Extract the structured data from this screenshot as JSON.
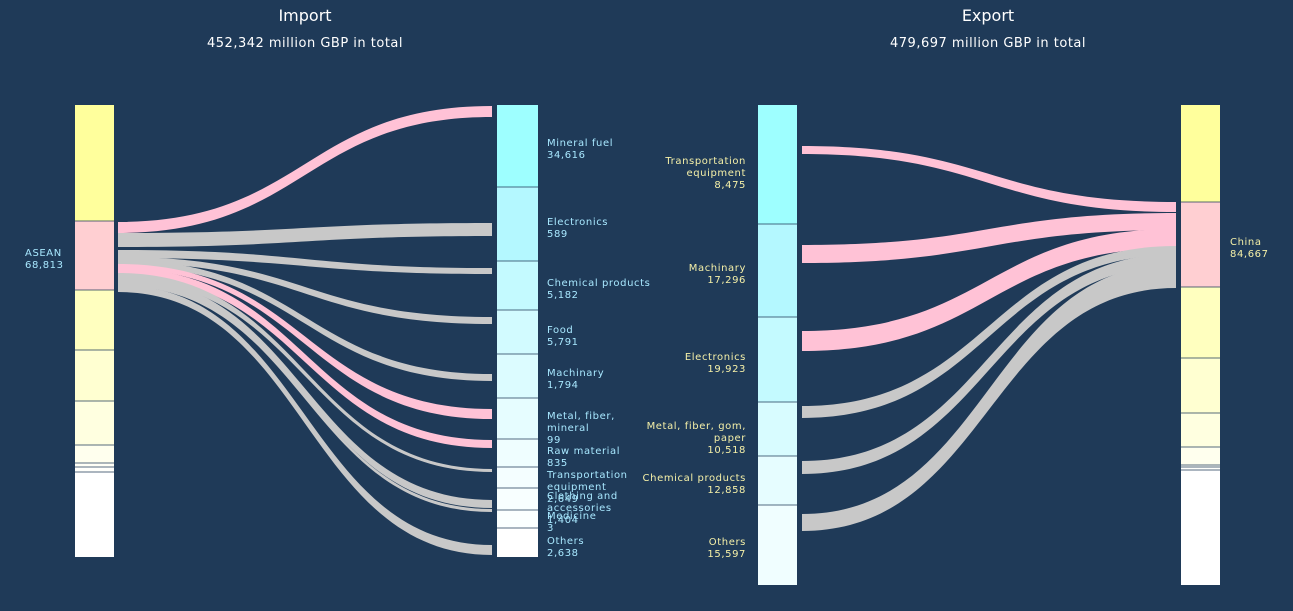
{
  "colors": {
    "background": "#1f3a58",
    "cyan_text": "#a8e8ff",
    "yellow_text": "#f5f0a8",
    "title_text": "#ffffff",
    "flow_pink": "#ffc2d6",
    "flow_grey": "#c8c8c8"
  },
  "import": {
    "title": "Import",
    "subtitle": "452,342 million GBP in total",
    "source_label": [
      "ASEAN",
      "68,813"
    ]
  },
  "export": {
    "title": "Export",
    "subtitle": "479,697 million GBP in total",
    "target_label": [
      "China",
      "84,667"
    ]
  },
  "chart_data": [
    {
      "type": "sankey",
      "title": "Import",
      "subtitle": "452,342 million GBP in total",
      "source": {
        "name": "ASEAN",
        "value": 68813
      },
      "left_bar": [
        {
          "color": "#ffff9c"
        },
        {
          "color": "#ffcfd2",
          "highlight": true
        },
        {
          "color": "#ffffbf"
        },
        {
          "color": "#ffffd1"
        },
        {
          "color": "#ffffe0"
        },
        {
          "color": "#ffffee"
        },
        {
          "color": "#fffff6"
        },
        {
          "color": "#fffffb"
        },
        {
          "color": "#ffffff"
        }
      ],
      "nodes": [
        {
          "name": "Mineral fuel",
          "label": [
            "Mineral fuel",
            "34,616"
          ],
          "value": 34616,
          "color": "#9effff",
          "flow": "pink"
        },
        {
          "name": "Electronics",
          "label": [
            "Electronics",
            "589"
          ],
          "value": 589,
          "color": "#b4f8ff",
          "flow": "grey"
        },
        {
          "name": "Chemical products",
          "label": [
            "Chemical products",
            "5,182"
          ],
          "value": 5182,
          "color": "#c4faff",
          "flow": "grey"
        },
        {
          "name": "Food",
          "label": [
            "Food",
            "5,791"
          ],
          "value": 5791,
          "color": "#d2fbff",
          "flow": "grey"
        },
        {
          "name": "Machinary",
          "label": [
            "Machinary",
            "1,794"
          ],
          "value": 1794,
          "color": "#dcfcff",
          "flow": "grey"
        },
        {
          "name": "Metal, fiber, mineral",
          "label": [
            "Metal, fiber,",
            "mineral",
            "99"
          ],
          "value": 99,
          "color": "#e6fdff",
          "flow": "pink"
        },
        {
          "name": "Raw material",
          "label": [
            "Raw material",
            "835"
          ],
          "value": 835,
          "color": "#effeff",
          "flow": "pink"
        },
        {
          "name": "Transportation equipment",
          "label": [
            "Transportation",
            "equipment",
            "2,649"
          ],
          "value": 2649,
          "color": "#f4feff",
          "flow": "grey"
        },
        {
          "name": "Clothing and accessories",
          "label": [
            "Clothing and",
            "accessories",
            "1,404"
          ],
          "value": 1404,
          "color": "#f8ffff",
          "flow": "grey"
        },
        {
          "name": "Medicine",
          "label": [
            "Medicine",
            "3"
          ],
          "value": 3,
          "color": "#fbffff",
          "flow": "grey"
        },
        {
          "name": "Others",
          "label": [
            "Others",
            "2,638"
          ],
          "value": 2638,
          "color": "#ffffff",
          "flow": "grey"
        }
      ]
    },
    {
      "type": "sankey",
      "title": "Export",
      "subtitle": "479,697 million GBP in total",
      "target": {
        "name": "China",
        "value": 84667
      },
      "right_bar": [
        {
          "color": "#ffff9c"
        },
        {
          "color": "#ffcfd2",
          "highlight": true
        },
        {
          "color": "#ffffbf"
        },
        {
          "color": "#ffffd1"
        },
        {
          "color": "#ffffe0"
        },
        {
          "color": "#ffffee"
        },
        {
          "color": "#fffff6"
        },
        {
          "color": "#fffffb"
        },
        {
          "color": "#ffffff"
        }
      ],
      "nodes": [
        {
          "name": "Transportation equipment",
          "label": [
            "Transportation",
            "equipment",
            "8,475"
          ],
          "value": 8475,
          "color": "#9effff",
          "flow": "pink"
        },
        {
          "name": "Machinary",
          "label": [
            "Machinary",
            "17,296"
          ],
          "value": 17296,
          "color": "#b4f8ff",
          "flow": "pink"
        },
        {
          "name": "Electronics",
          "label": [
            "Electronics",
            "19,923"
          ],
          "value": 19923,
          "color": "#c4faff",
          "flow": "pink"
        },
        {
          "name": "Metal, fiber, gom, paper",
          "label": [
            "Metal, fiber, gom,",
            "paper",
            "10,518"
          ],
          "value": 10518,
          "color": "#d8fcff",
          "flow": "grey"
        },
        {
          "name": "Chemical products",
          "label": [
            "Chemical products",
            "12,858"
          ],
          "value": 12858,
          "color": "#e6fdff",
          "flow": "grey"
        },
        {
          "name": "Others",
          "label": [
            "Others",
            "15,597"
          ],
          "value": 15597,
          "color": "#f0feff",
          "flow": "grey"
        }
      ]
    }
  ]
}
